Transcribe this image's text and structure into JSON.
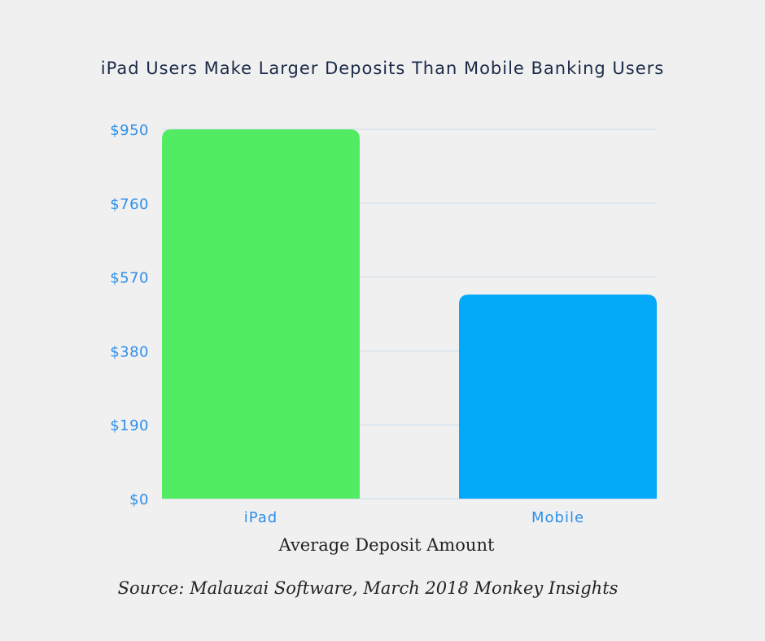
{
  "chart_data": {
    "type": "bar",
    "title": "iPad Users Make Larger Deposits Than Mobile Banking Users",
    "categories": [
      "iPad",
      "Mobile"
    ],
    "values": [
      950,
      525
    ],
    "colors": [
      "#52eb64",
      "#04a9f9"
    ],
    "xlabel": "Average Deposit Amount",
    "ylabel": "",
    "ylim": [
      0,
      950
    ],
    "yticks": [
      0,
      190,
      380,
      570,
      760,
      950
    ],
    "ytick_labels": [
      "$0",
      "$190",
      "$380",
      "$570",
      "$760",
      "$950"
    ],
    "grid": true,
    "gridline_color": "#cfe0ee",
    "tick_color": "#2f8fe8"
  },
  "footer": {
    "source": "Source: Malauzai Software, March 2018 Monkey Insights"
  }
}
